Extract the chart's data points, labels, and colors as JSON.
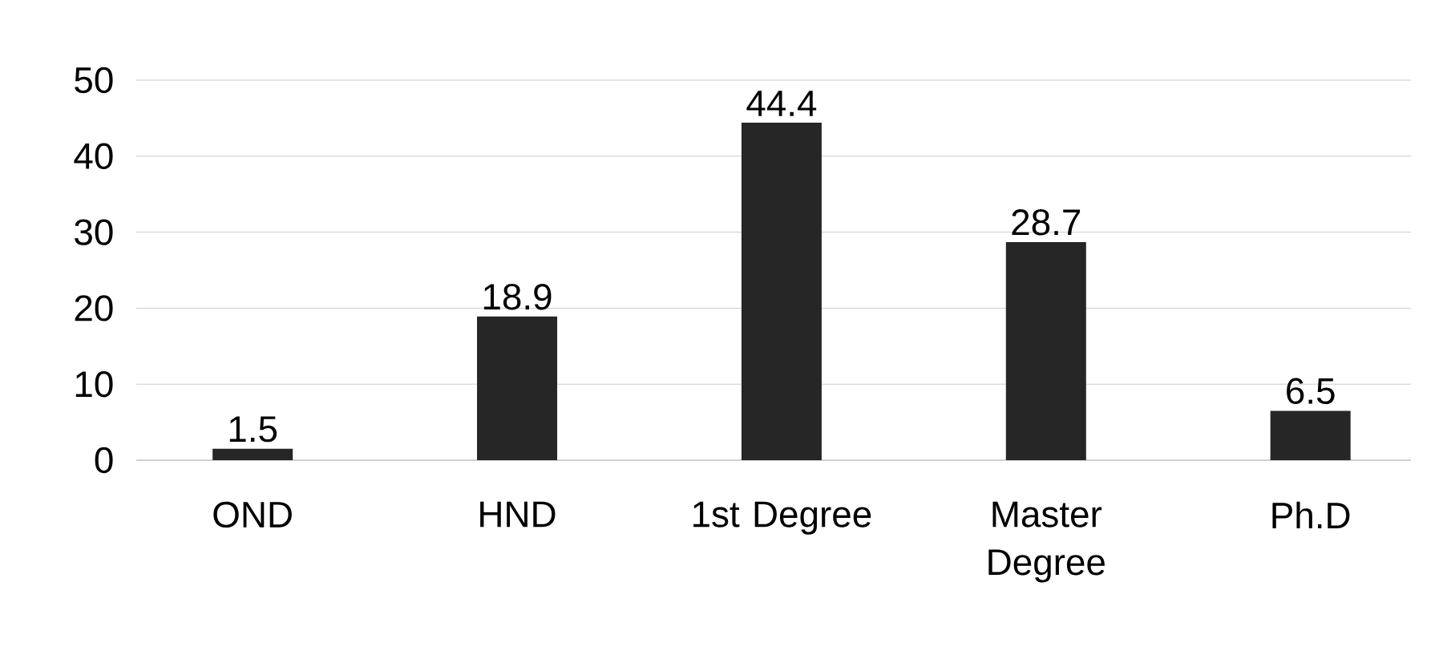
{
  "chart_data": {
    "type": "bar",
    "categories": [
      "OND",
      "HND",
      "1st Degree",
      "Master Degree",
      "Ph.D"
    ],
    "values": [
      1.5,
      18.9,
      44.4,
      28.7,
      6.5
    ],
    "color": "#262626",
    "ylim": [
      0,
      50
    ],
    "yticks": [
      0,
      10,
      20,
      30,
      40,
      50
    ],
    "grid": "y",
    "data_labels": true
  }
}
